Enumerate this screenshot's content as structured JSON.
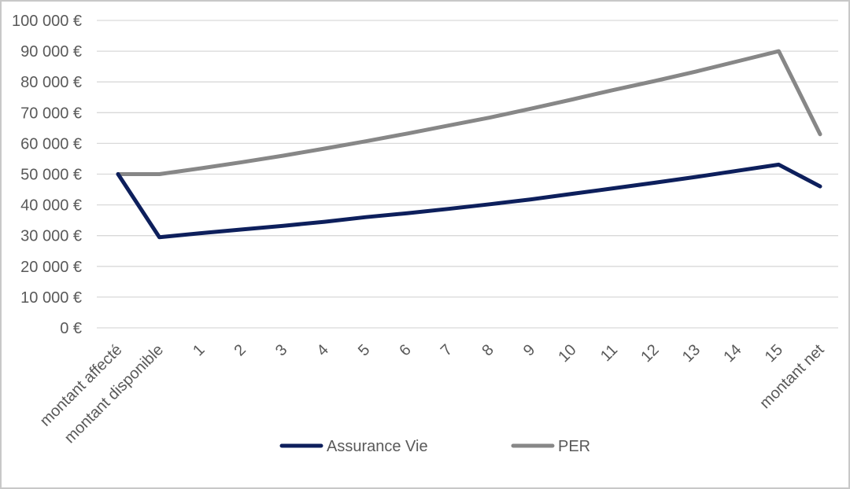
{
  "chart_data": {
    "type": "line",
    "title": "",
    "xlabel": "",
    "ylabel": "",
    "categories": [
      "montant affecté",
      "montant disponible",
      "1",
      "2",
      "3",
      "4",
      "5",
      "6",
      "7",
      "8",
      "9",
      "10",
      "11",
      "12",
      "13",
      "14",
      "15",
      "montant net"
    ],
    "ylim": [
      0,
      100000
    ],
    "yticks": [
      0,
      10000,
      20000,
      30000,
      40000,
      50000,
      60000,
      70000,
      80000,
      90000,
      100000
    ],
    "ytick_labels": [
      "0 €",
      "10 000 €",
      "20 000 €",
      "30 000 €",
      "40 000 €",
      "50 000 €",
      "60 000 €",
      "70 000 €",
      "80 000 €",
      "90 000 €",
      "100 000 €"
    ],
    "grid": true,
    "legend_position": "bottom",
    "series": [
      {
        "name": "Assurance Vie",
        "color": "#0d1f5c",
        "values": [
          50000,
          29500,
          30800,
          32000,
          33200,
          34500,
          36000,
          37300,
          38700,
          40200,
          41800,
          43600,
          45400,
          47200,
          49100,
          51100,
          53100,
          46000
        ]
      },
      {
        "name": "PER",
        "color": "#878787",
        "values": [
          50000,
          50000,
          51900,
          53900,
          56000,
          58300,
          60700,
          63200,
          65800,
          68400,
          71300,
          74300,
          77400,
          80300,
          83400,
          86700,
          90000,
          63000
        ]
      }
    ]
  }
}
